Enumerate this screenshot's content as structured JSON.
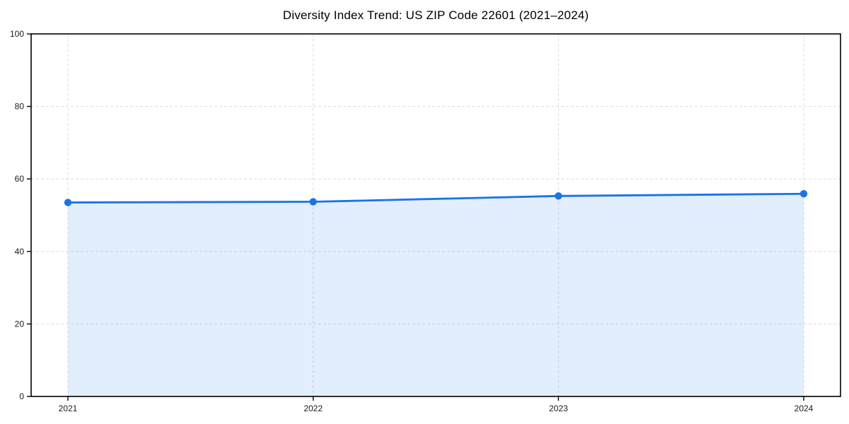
{
  "chart_data": {
    "type": "line",
    "title": "Diversity Index Trend: US ZIP Code 22601 (2021–2024)",
    "x": [
      2021,
      2022,
      2023,
      2024
    ],
    "series": [
      {
        "name": "Diversity Index",
        "values": [
          53.5,
          53.7,
          55.3,
          55.9
        ]
      }
    ],
    "xlabel": "",
    "ylabel": "",
    "xlim": [
      2020.85,
      2024.15
    ],
    "ylim": [
      0,
      100
    ],
    "xticks": [
      2021,
      2022,
      2023,
      2024
    ],
    "yticks": [
      0,
      20,
      40,
      60,
      80,
      100
    ],
    "grid": true,
    "grid_style": "dashed",
    "legend_position": "none",
    "area_fill_under_line": true,
    "markers": "circle",
    "colors": {
      "line": "#1a73e8",
      "marker": "#1a73e8",
      "area_fill": "rgba(26,115,232,0.12)",
      "grid": "#dcdcdc",
      "frame": "#000000",
      "tick": "#000000",
      "tick_label": "#1a1a1a",
      "title": "#000000",
      "background": "#ffffff"
    }
  }
}
